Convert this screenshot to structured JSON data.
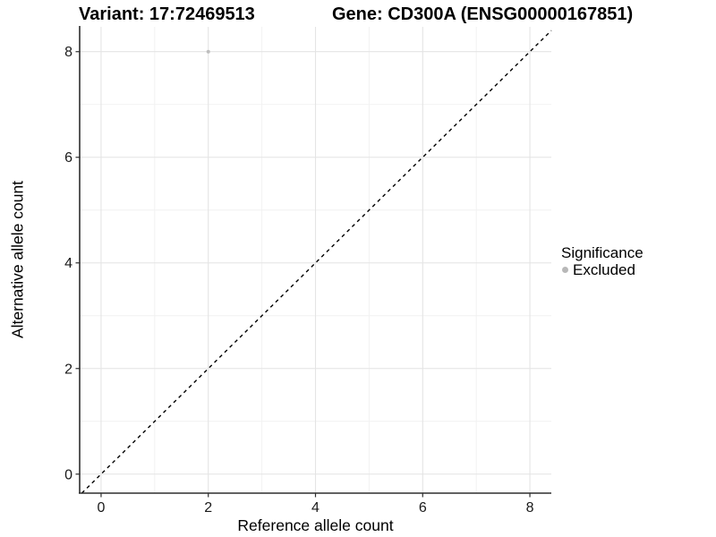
{
  "figure": {
    "title_left": "Variant: 17:72469513",
    "title_right": "Gene: CD300A (ENSG00000167851)"
  },
  "chart_data": {
    "type": "scatter",
    "title": "Variant: 17:72469513   |   Gene: CD300A (ENSG00000167851)",
    "xlabel": "Reference allele count",
    "ylabel": "Alternative allele count",
    "xlim": [
      -0.4,
      8.4
    ],
    "ylim": [
      -0.36,
      8.47
    ],
    "x_ticks": [
      0,
      2,
      4,
      6,
      8
    ],
    "y_ticks": [
      0,
      2,
      4,
      6,
      8
    ],
    "x_minor_ticks": [
      1,
      3,
      5,
      7
    ],
    "y_minor_ticks": [
      1,
      3,
      5,
      7
    ],
    "grid": "major and minor, light grey on white",
    "legend": {
      "title": "Significance",
      "position": "right",
      "entries": [
        {
          "label": "Excluded",
          "color": "#b8b8b8"
        }
      ]
    },
    "series": [
      {
        "name": "Excluded",
        "color": "#bebebe",
        "point_radius": 2.0,
        "points": [
          {
            "x": 2,
            "y": 8
          }
        ]
      }
    ],
    "reference_line": {
      "kind": "identity y = x",
      "slope": 1,
      "intercept": 0,
      "style": "dashed",
      "color": "#000000"
    }
  },
  "colors": {
    "background": "#ffffff",
    "grid_major": "#e4e4e4",
    "grid_minor": "#f1f1f1",
    "axis_line": "#2e2e2e",
    "text": "#000000"
  }
}
